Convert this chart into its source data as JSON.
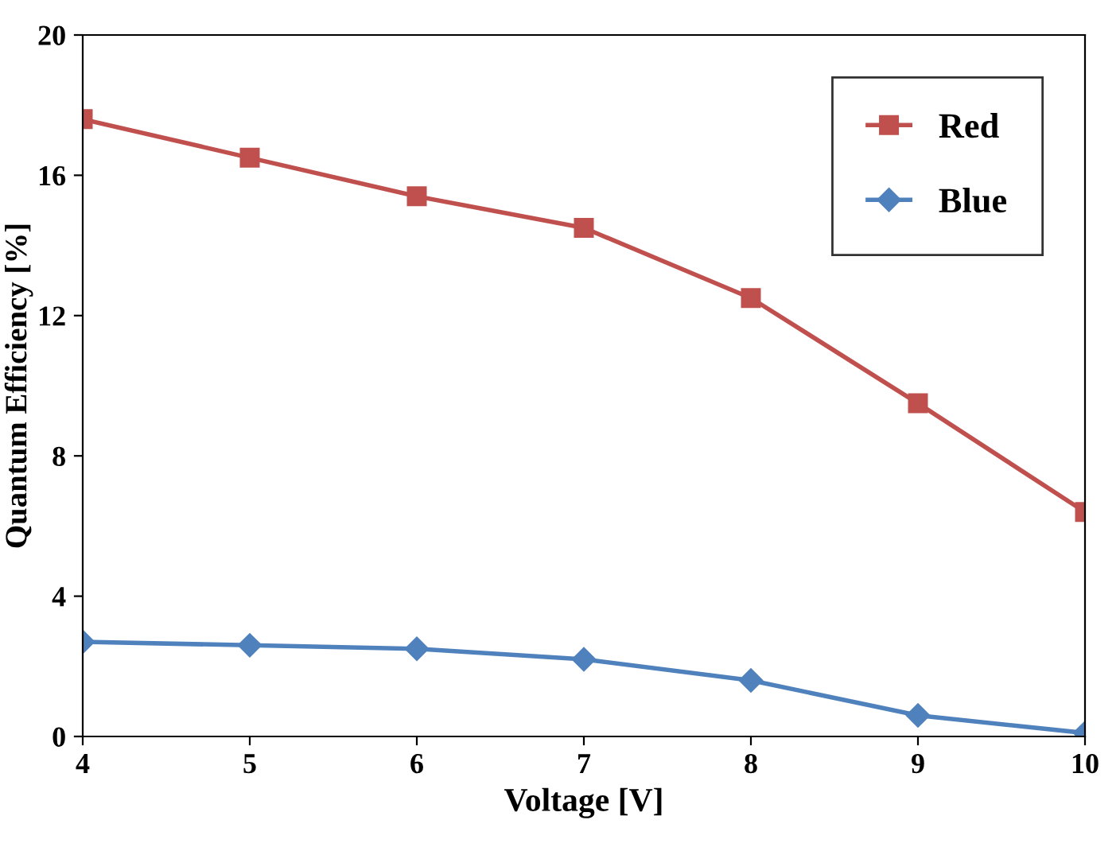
{
  "chart_data": {
    "type": "line",
    "xlabel": "Voltage [V]",
    "ylabel": "Quantum Efficiency [%]",
    "x": [
      4,
      5,
      6,
      7,
      8,
      9,
      10
    ],
    "series": [
      {
        "name": "Red",
        "color": "#c0504d",
        "marker": "square",
        "values": [
          17.6,
          16.5,
          15.4,
          14.5,
          12.5,
          9.5,
          6.4
        ]
      },
      {
        "name": "Blue",
        "color": "#4f81bd",
        "marker": "diamond",
        "values": [
          2.7,
          2.6,
          2.5,
          2.2,
          1.6,
          0.6,
          0.1
        ]
      }
    ],
    "xlim": [
      4,
      10
    ],
    "xticks": [
      4,
      5,
      6,
      7,
      8,
      9,
      10
    ],
    "ylim": [
      0,
      20
    ],
    "yticks": [
      0,
      4,
      8,
      12,
      16,
      20
    ],
    "grid": false,
    "legend": "top right",
    "line_style": "solid"
  }
}
